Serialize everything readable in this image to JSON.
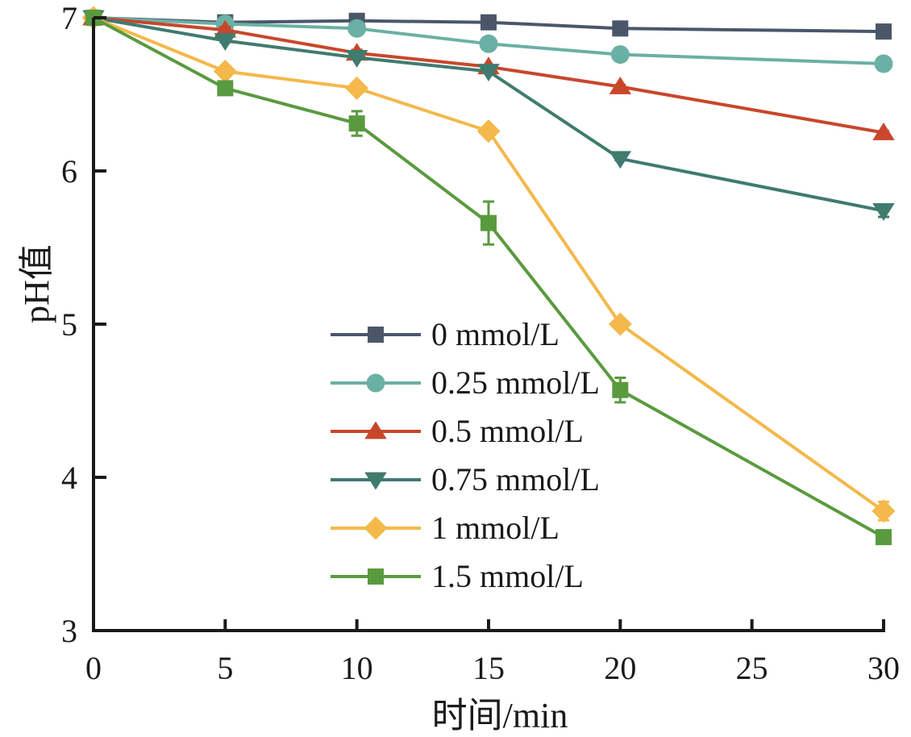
{
  "chart_data": {
    "type": "line",
    "title": "",
    "xlabel": "时间/min",
    "ylabel": "pH值",
    "xlim": [
      0,
      30
    ],
    "ylim": [
      3,
      7
    ],
    "xticks": [
      0,
      5,
      10,
      15,
      20,
      25,
      30
    ],
    "yticks": [
      3,
      4,
      5,
      6,
      7
    ],
    "grid": false,
    "legend_position": "center-bottom",
    "x": [
      0,
      5,
      10,
      15,
      20,
      30
    ],
    "series": [
      {
        "name": "0 mmol/L",
        "marker": "square",
        "color": "#4b5769",
        "values": [
          7.0,
          6.97,
          6.98,
          6.97,
          6.93,
          6.91
        ],
        "errors": [
          0,
          0.02,
          0.02,
          0.01,
          0.01,
          0.01
        ]
      },
      {
        "name": "0.25 mmol/L",
        "marker": "circle",
        "color": "#6bb0a4",
        "values": [
          7.0,
          6.96,
          6.93,
          6.83,
          6.76,
          6.7
        ],
        "errors": [
          0,
          0.01,
          0.01,
          0.01,
          0.01,
          0.01
        ]
      },
      {
        "name": "0.5 mmol/L",
        "marker": "triangle-up",
        "color": "#c8472c",
        "values": [
          7.0,
          6.92,
          6.77,
          6.68,
          6.55,
          6.25
        ],
        "errors": [
          0,
          0.02,
          0.02,
          0.01,
          0.01,
          0.01
        ]
      },
      {
        "name": "0.75 mmol/L",
        "marker": "triangle-down",
        "color": "#3f7b6f",
        "values": [
          7.0,
          6.85,
          6.74,
          6.65,
          6.08,
          5.74
        ],
        "errors": [
          0,
          0.01,
          0.01,
          0.01,
          0.01,
          0.04
        ]
      },
      {
        "name": "1 mmol/L",
        "marker": "diamond",
        "color": "#f4b84b",
        "values": [
          7.0,
          6.65,
          6.54,
          6.26,
          5.0,
          3.78
        ],
        "errors": [
          0,
          0.01,
          0.01,
          0.01,
          0.01,
          0.06
        ]
      },
      {
        "name": "1.5 mmol/L",
        "marker": "square",
        "color": "#5a9a3f",
        "values": [
          7.0,
          6.54,
          6.31,
          5.66,
          4.57,
          3.61
        ],
        "errors": [
          0,
          0.01,
          0.08,
          0.14,
          0.08,
          0.01
        ]
      }
    ]
  }
}
